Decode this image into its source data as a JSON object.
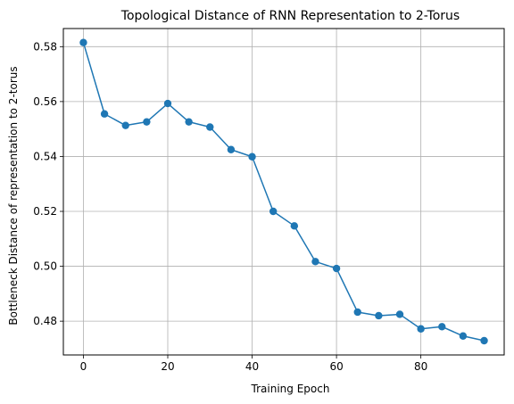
{
  "chart_data": {
    "type": "line",
    "title": "Topological Distance of RNN Representation to 2-Torus",
    "xlabel": "Training Epoch",
    "ylabel": "Bottleneck Distance of representation to 2-torus",
    "xlim": [
      -4.75,
      99.75
    ],
    "ylim": [
      0.4677,
      0.5866
    ],
    "xticks": [
      0,
      20,
      40,
      60,
      80
    ],
    "yticks": [
      0.48,
      0.5,
      0.52,
      0.54,
      0.56,
      0.58
    ],
    "grid": true,
    "legend": "none",
    "series": [
      {
        "color": "#1f77b4",
        "marker": "circle",
        "x": [
          0,
          5,
          10,
          15,
          20,
          25,
          30,
          35,
          40,
          45,
          50,
          55,
          60,
          65,
          70,
          75,
          80,
          85,
          90,
          95
        ],
        "y": [
          0.5815,
          0.5555,
          0.5513,
          0.5526,
          0.5593,
          0.5526,
          0.5507,
          0.5425,
          0.5399,
          0.52,
          0.5147,
          0.5017,
          0.4992,
          0.4833,
          0.482,
          0.4825,
          0.4772,
          0.478,
          0.4746,
          0.4729
        ]
      }
    ]
  }
}
